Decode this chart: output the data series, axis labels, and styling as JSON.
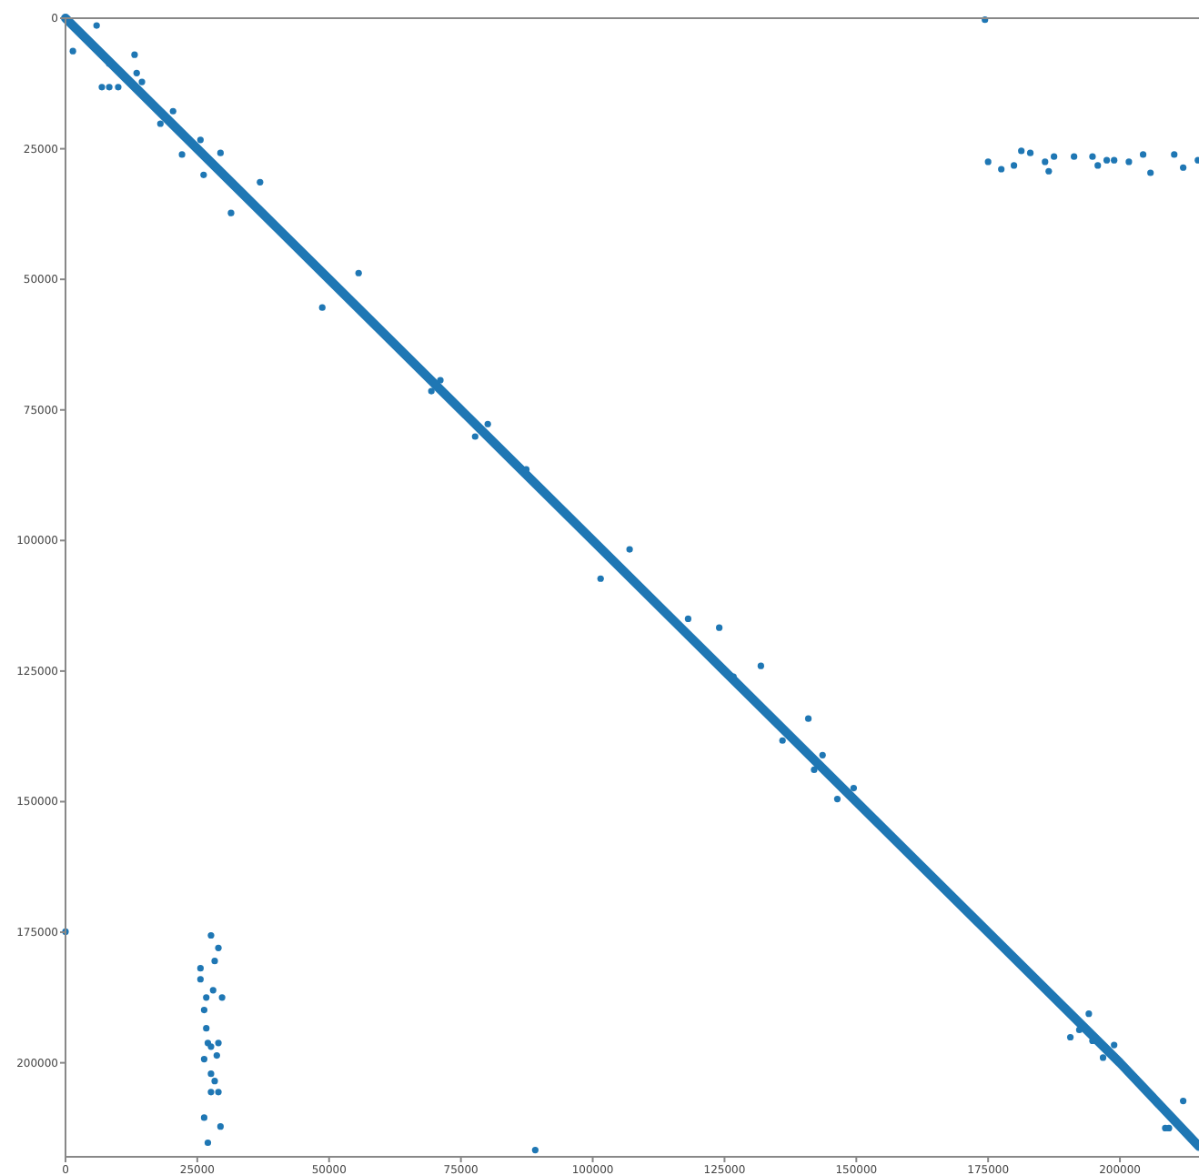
{
  "chart_data": {
    "type": "scatter",
    "xlim": [
      0,
      215000
    ],
    "ylim": [
      218000,
      0
    ],
    "xticks": [
      0,
      25000,
      50000,
      75000,
      100000,
      125000,
      150000,
      175000,
      200000
    ],
    "yticks": [
      0,
      25000,
      50000,
      75000,
      100000,
      125000,
      150000,
      175000,
      200000
    ],
    "series": [
      {
        "type": "line",
        "color": "#1f77b4",
        "line_style": "solid",
        "x": [
          0,
          25000,
          50000,
          75000,
          100000,
          125000,
          150000,
          175000,
          200000,
          215000
        ],
        "values": [
          0,
          25000,
          50000,
          75000,
          100000,
          125000,
          150000,
          175000,
          200000,
          216000
        ]
      },
      {
        "color": "#1f77b4",
        "marker": "circle",
        "x": [
          6900,
          8300,
          10000,
          8300,
          13100,
          13500,
          14500,
          5900,
          1400,
          20400,
          18000,
          25600,
          22100,
          29400,
          26200,
          36900,
          31400,
          55600,
          48700,
          71100,
          69400,
          80100,
          77700,
          87400,
          107000,
          101500,
          118100,
          124000,
          131900,
          126700,
          140900,
          136000,
          143600,
          142000,
          149500,
          146400,
          174400,
          175000,
          177500,
          179900,
          181300,
          183000,
          185800,
          186500,
          187500,
          191300,
          194800,
          195800,
          197500,
          198900,
          201700,
          204400,
          205800,
          210300,
          212000,
          214800,
          27600,
          29000,
          28300,
          25600,
          25600,
          26700,
          28000,
          29700,
          26300,
          26700,
          27000,
          29000,
          27600,
          26300,
          28700,
          27600,
          28300,
          27600,
          29000,
          26300,
          29400,
          27000,
          89100,
          0,
          194800,
          192300,
          194100,
          190600,
          196800,
          198900,
          212000,
          208600,
          209300
        ],
        "values": [
          13200,
          13200,
          13200,
          8700,
          7000,
          10500,
          12200,
          1400,
          6300,
          17800,
          20200,
          23300,
          26100,
          25800,
          30000,
          31400,
          37300,
          48800,
          55400,
          69300,
          71400,
          77700,
          80100,
          86400,
          101700,
          107300,
          115000,
          116700,
          124000,
          126100,
          134100,
          138300,
          141100,
          143900,
          147400,
          149500,
          300,
          27500,
          28900,
          28200,
          25400,
          25800,
          27500,
          29300,
          26500,
          26500,
          26500,
          28200,
          27200,
          27200,
          27500,
          26100,
          29600,
          26100,
          28600,
          27200,
          175600,
          178000,
          180500,
          181900,
          184000,
          187500,
          186100,
          187500,
          189900,
          193400,
          196200,
          196200,
          196900,
          199300,
          198600,
          202100,
          203500,
          205600,
          205600,
          210500,
          212200,
          215300,
          216700,
          174900,
          195800,
          193700,
          190600,
          195100,
          199000,
          196600,
          207300,
          212500,
          212500
        ]
      }
    ]
  }
}
